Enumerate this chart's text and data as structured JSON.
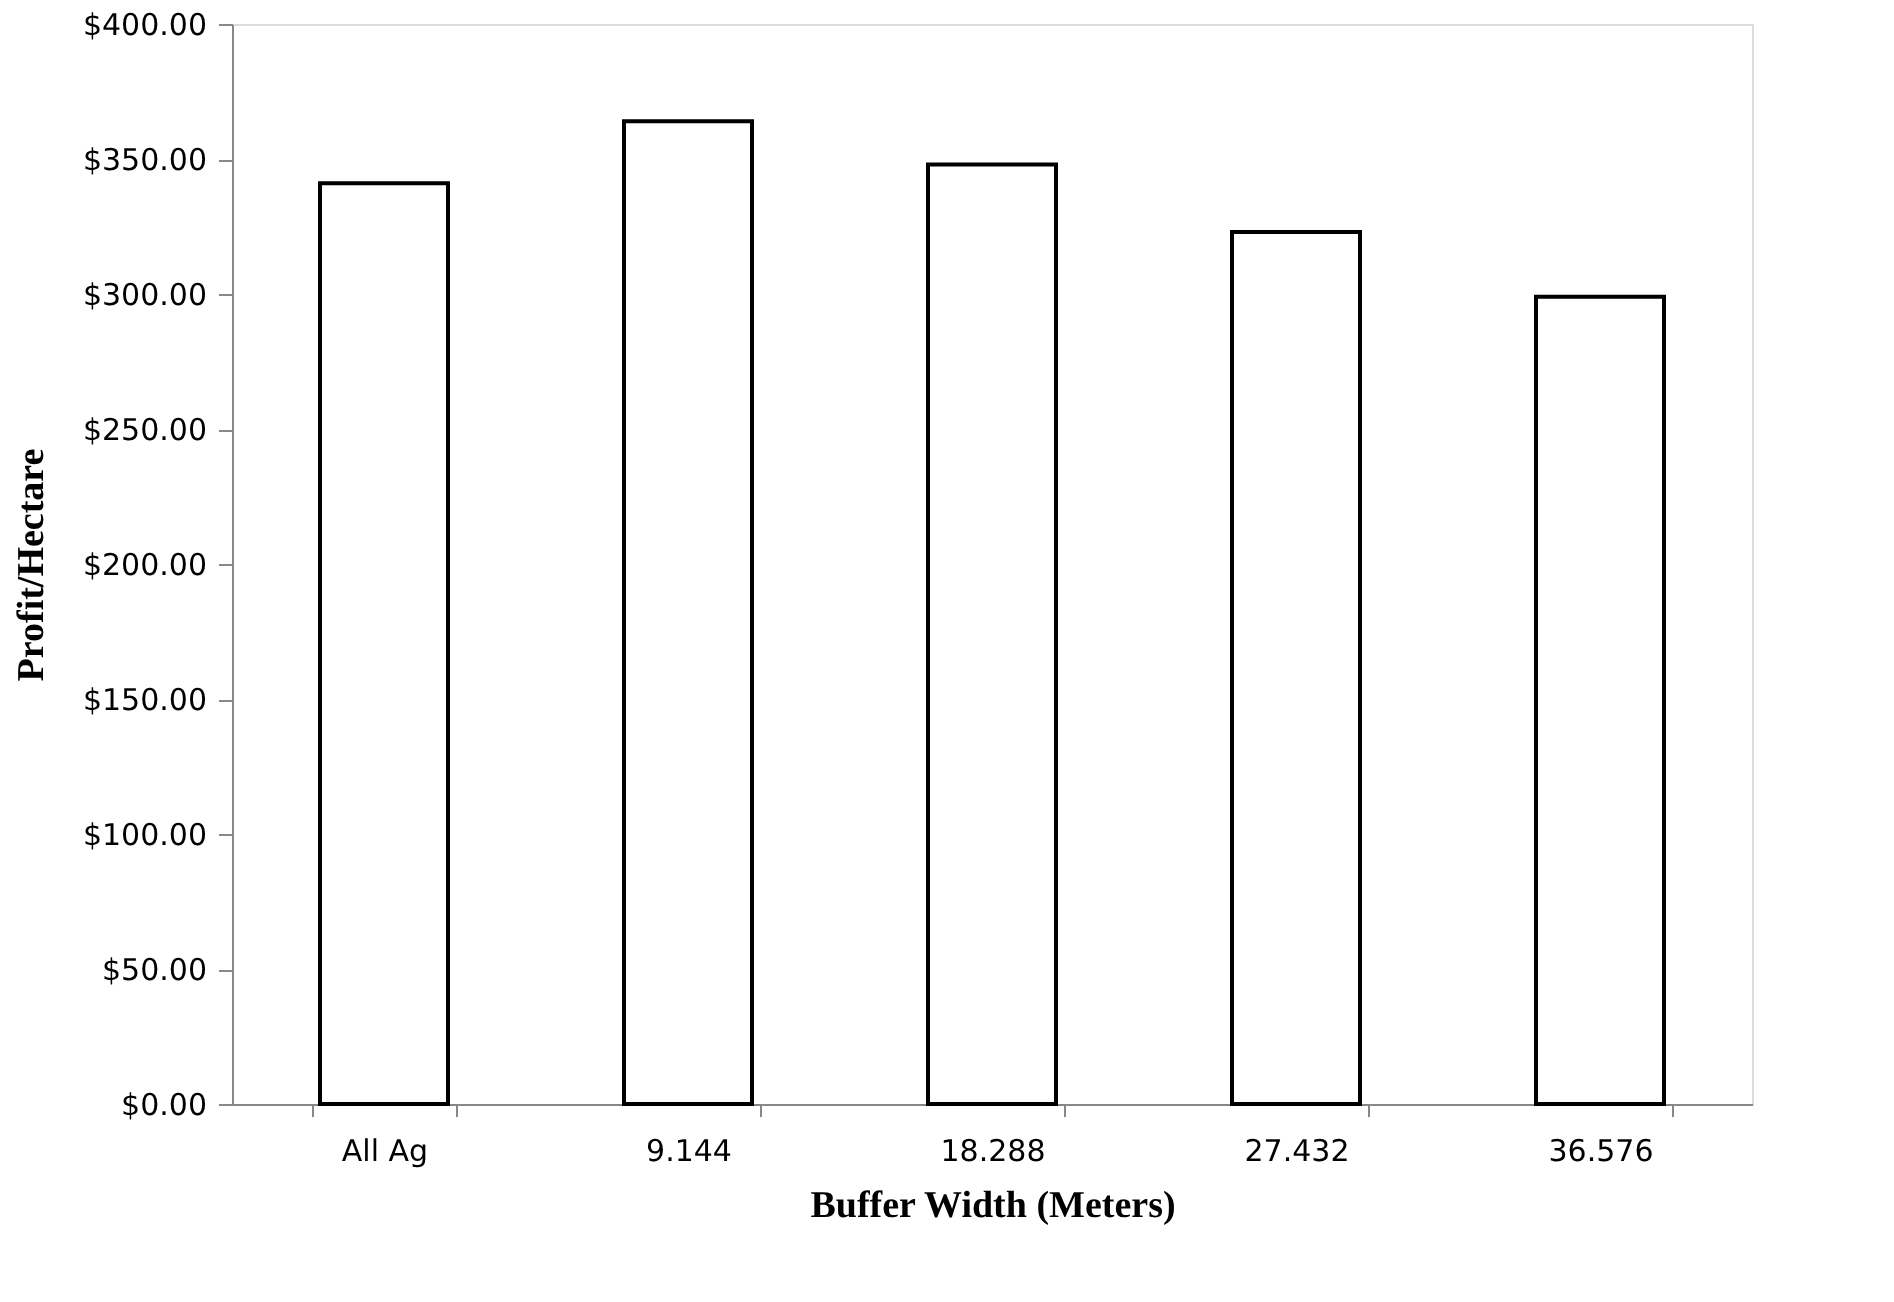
{
  "chart_data": {
    "type": "bar",
    "xlabel": "Buffer Width (Meters)",
    "ylabel": "Profit/Hectare",
    "categories": [
      "All Ag",
      "9.144",
      "18.288",
      "27.432",
      "36.576"
    ],
    "values": [
      341,
      364,
      348,
      323,
      299
    ],
    "color": "#ffffff",
    "ylim": [
      0,
      400
    ],
    "yticks": [
      {
        "value": 0,
        "label": "$0.00"
      },
      {
        "value": 50,
        "label": "$50.00"
      },
      {
        "value": 100,
        "label": "$100.00"
      },
      {
        "value": 150,
        "label": "$150.00"
      },
      {
        "value": 200,
        "label": "$200.00"
      },
      {
        "value": 250,
        "label": "$250.00"
      },
      {
        "value": 300,
        "label": "$300.00"
      },
      {
        "value": 350,
        "label": "$350.00"
      },
      {
        "value": 400,
        "label": "$400.00"
      }
    ],
    "grid": false
  }
}
